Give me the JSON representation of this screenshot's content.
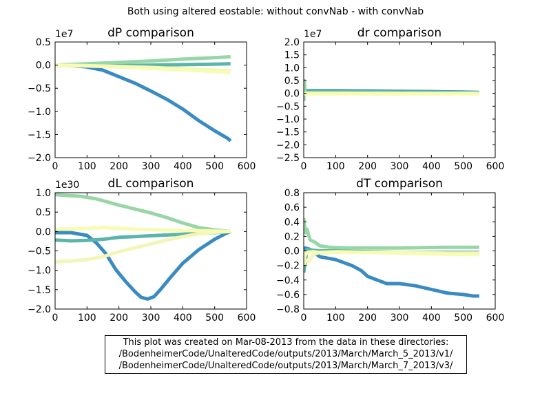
{
  "figure": {
    "suptitle": "Both using altered eostable: without convNab - with convNab",
    "footnote": [
      "This plot was created on Mar-08-2013 from the data in these directories:",
      "/BodenheimerCode/UnalteredCode/outputs/2013/March/March_5_2013/v1/",
      "/BodenheimerCode/UnalteredCode/outputs/2013/March/March_7_2013/v3/"
    ]
  },
  "colors": {
    "series": [
      "#3a8bc1",
      "#5bb5a8",
      "#98d6a8",
      "#f3f6b8",
      "#f8fbb4"
    ],
    "axes": "#000000",
    "background": "#ffffff"
  },
  "chart_data": [
    {
      "type": "line",
      "title": "dP comparison",
      "offset_text": "1e7",
      "xlabel": "",
      "ylabel": "",
      "xlim": [
        0,
        600
      ],
      "ylim": [
        -2.0,
        0.5
      ],
      "xticks": [
        0,
        100,
        200,
        300,
        400,
        500,
        600
      ],
      "xtick_labels": [
        "0",
        "100",
        "200",
        "300",
        "400",
        "500",
        "600"
      ],
      "yticks": [
        -2.0,
        -1.5,
        -1.0,
        -0.5,
        0.0,
        0.5
      ],
      "ytick_labels": [
        "−2.0",
        "−1.5",
        "−1.0",
        "−0.5",
        "0.0",
        "0.5"
      ],
      "grid": false,
      "series": [
        {
          "x": [
            0,
            50,
            100,
            150,
            200,
            250,
            300,
            350,
            400,
            450,
            500,
            540,
            550
          ],
          "y": [
            0.0,
            -0.01,
            -0.04,
            -0.11,
            -0.25,
            -0.39,
            -0.56,
            -0.74,
            -0.95,
            -1.2,
            -1.42,
            -1.58,
            -1.64
          ]
        },
        {
          "x": [
            0,
            100,
            200,
            300,
            400,
            500,
            550
          ],
          "y": [
            0.0,
            -0.01,
            -0.01,
            0.0,
            0.01,
            0.02,
            0.03
          ]
        },
        {
          "x": [
            0,
            100,
            200,
            300,
            400,
            500,
            550
          ],
          "y": [
            0.0,
            0.03,
            0.06,
            0.09,
            0.13,
            0.16,
            0.18
          ]
        },
        {
          "x": [
            0,
            100,
            200,
            300,
            400,
            500,
            550
          ],
          "y": [
            0.0,
            -0.01,
            -0.03,
            -0.05,
            -0.08,
            -0.11,
            -0.12
          ]
        },
        {
          "x": [
            0,
            100,
            200,
            300,
            400,
            500,
            550
          ],
          "y": [
            0.0,
            -0.02,
            -0.04,
            -0.07,
            -0.1,
            -0.14,
            -0.16
          ]
        }
      ]
    },
    {
      "type": "line",
      "title": "dr comparison",
      "offset_text": "1e7",
      "xlabel": "",
      "ylabel": "",
      "xlim": [
        0,
        600
      ],
      "ylim": [
        -2.5,
        2.0
      ],
      "xticks": [
        0,
        100,
        200,
        300,
        400,
        500,
        600
      ],
      "xtick_labels": [
        "0",
        "100",
        "200",
        "300",
        "400",
        "500",
        "600"
      ],
      "yticks": [
        -2.5,
        -2.0,
        -1.5,
        -1.0,
        -0.5,
        0.0,
        0.5,
        1.0,
        1.5,
        2.0
      ],
      "ytick_labels": [
        "−2.5",
        "−2.0",
        "−1.5",
        "−1.0",
        "−0.5",
        "0.0",
        "0.5",
        "1.0",
        "1.5",
        "2.0"
      ],
      "grid": false,
      "series": [
        {
          "x": [
            0,
            100,
            200,
            300,
            400,
            500,
            550
          ],
          "y": [
            0.1,
            0.1,
            0.09,
            0.08,
            0.07,
            0.05,
            0.04
          ]
        },
        {
          "x": [
            0,
            100,
            200,
            300,
            400,
            500,
            550
          ],
          "y": [
            0.07,
            0.07,
            0.06,
            0.05,
            0.05,
            0.04,
            0.03
          ]
        },
        {
          "x": [
            0,
            2,
            4,
            10,
            100,
            300,
            550
          ],
          "y": [
            -0.3,
            0.5,
            0.05,
            0.02,
            0.02,
            0.01,
            0.01
          ]
        },
        {
          "x": [
            0,
            100,
            200,
            300,
            400,
            500,
            550
          ],
          "y": [
            0.0,
            0.0,
            0.0,
            0.0,
            0.0,
            0.0,
            0.0
          ]
        },
        {
          "x": [
            0,
            100,
            200,
            300,
            400,
            500,
            550
          ],
          "y": [
            -0.02,
            -0.02,
            -0.02,
            -0.02,
            -0.02,
            -0.02,
            -0.02
          ]
        }
      ]
    },
    {
      "type": "line",
      "title": "dL comparison",
      "offset_text": "1e30",
      "xlabel": "",
      "ylabel": "",
      "xlim": [
        0,
        600
      ],
      "ylim": [
        -2.0,
        1.0
      ],
      "xticks": [
        0,
        100,
        200,
        300,
        400,
        500,
        600
      ],
      "xtick_labels": [
        "0",
        "100",
        "200",
        "300",
        "400",
        "500",
        "600"
      ],
      "yticks": [
        -2.0,
        -1.5,
        -1.0,
        -0.5,
        0.0,
        0.5,
        1.0
      ],
      "ytick_labels": [
        "−2.0",
        "−1.5",
        "−1.0",
        "−0.5",
        "0.0",
        "0.5",
        "1.0"
      ],
      "grid": false,
      "series": [
        {
          "x": [
            0,
            50,
            100,
            130,
            160,
            190,
            220,
            250,
            270,
            290,
            310,
            330,
            360,
            400,
            450,
            500,
            530,
            550
          ],
          "y": [
            -0.03,
            -0.03,
            -0.1,
            -0.3,
            -0.58,
            -0.98,
            -1.28,
            -1.55,
            -1.7,
            -1.74,
            -1.68,
            -1.5,
            -1.2,
            -0.82,
            -0.47,
            -0.2,
            -0.07,
            0.0
          ]
        },
        {
          "x": [
            0,
            50,
            100,
            150,
            200,
            250,
            300,
            350,
            400,
            450,
            500,
            550
          ],
          "y": [
            -0.22,
            -0.24,
            -0.23,
            -0.2,
            -0.15,
            -0.13,
            -0.11,
            -0.09,
            -0.07,
            -0.05,
            -0.03,
            0.0
          ]
        },
        {
          "x": [
            0,
            30,
            80,
            130,
            200,
            250,
            300,
            350,
            400,
            450,
            500,
            550
          ],
          "y": [
            0.95,
            0.93,
            0.91,
            0.84,
            0.68,
            0.58,
            0.48,
            0.36,
            0.22,
            0.1,
            0.04,
            0.0
          ]
        },
        {
          "x": [
            0,
            50,
            100,
            150,
            200,
            250,
            300,
            350,
            400,
            450,
            500,
            550
          ],
          "y": [
            -0.78,
            -0.76,
            -0.72,
            -0.65,
            -0.52,
            -0.42,
            -0.32,
            -0.22,
            -0.13,
            -0.06,
            -0.02,
            0.0
          ]
        },
        {
          "x": [
            0,
            50,
            100,
            150,
            200,
            250,
            300,
            350,
            400,
            450,
            500,
            550
          ],
          "y": [
            0.06,
            0.07,
            0.08,
            0.1,
            0.08,
            0.06,
            0.05,
            0.04,
            0.03,
            0.02,
            0.01,
            0.0
          ]
        }
      ]
    },
    {
      "type": "line",
      "title": "dT comparison",
      "offset_text": "",
      "xlabel": "",
      "ylabel": "",
      "xlim": [
        0,
        600
      ],
      "ylim": [
        -0.8,
        0.8
      ],
      "xticks": [
        0,
        100,
        200,
        300,
        400,
        500,
        600
      ],
      "xtick_labels": [
        "0",
        "100",
        "200",
        "300",
        "400",
        "500",
        "600"
      ],
      "yticks": [
        -0.8,
        -0.6,
        -0.4,
        -0.2,
        0.0,
        0.2,
        0.4,
        0.6,
        0.8
      ],
      "ytick_labels": [
        "−0.8",
        "−0.6",
        "−0.4",
        "−0.2",
        "0.0",
        "0.2",
        "0.4",
        "0.6",
        "0.8"
      ],
      "grid": false,
      "series": [
        {
          "x": [
            0,
            5,
            20,
            50,
            100,
            150,
            180,
            200,
            230,
            260,
            300,
            350,
            400,
            450,
            500,
            530,
            550
          ],
          "y": [
            0.0,
            0.04,
            0.02,
            -0.08,
            -0.12,
            -0.2,
            -0.27,
            -0.35,
            -0.4,
            -0.45,
            -0.45,
            -0.48,
            -0.53,
            -0.58,
            -0.6,
            -0.62,
            -0.62
          ]
        },
        {
          "x": [
            0,
            10,
            25,
            50,
            100,
            200,
            300,
            400,
            550
          ],
          "y": [
            -0.3,
            0.02,
            0.01,
            0.0,
            0.0,
            -0.01,
            -0.02,
            -0.02,
            -0.02
          ]
        },
        {
          "x": [
            0,
            5,
            10,
            20,
            35,
            50,
            80,
            150,
            300,
            450,
            550
          ],
          "y": [
            0.45,
            0.25,
            0.3,
            0.15,
            0.12,
            0.07,
            0.05,
            0.04,
            0.04,
            0.05,
            0.05
          ]
        },
        {
          "x": [
            0,
            5,
            15,
            30,
            50,
            100,
            200,
            300,
            450,
            550
          ],
          "y": [
            -0.2,
            -0.12,
            -0.15,
            -0.05,
            -0.02,
            -0.01,
            -0.02,
            -0.02,
            -0.03,
            -0.03
          ]
        },
        {
          "x": [
            0,
            10,
            30,
            60,
            100,
            200,
            300,
            400,
            500,
            550
          ],
          "y": [
            -0.1,
            -0.02,
            -0.01,
            -0.03,
            -0.02,
            -0.02,
            -0.03,
            -0.04,
            -0.05,
            -0.05
          ]
        }
      ]
    }
  ]
}
